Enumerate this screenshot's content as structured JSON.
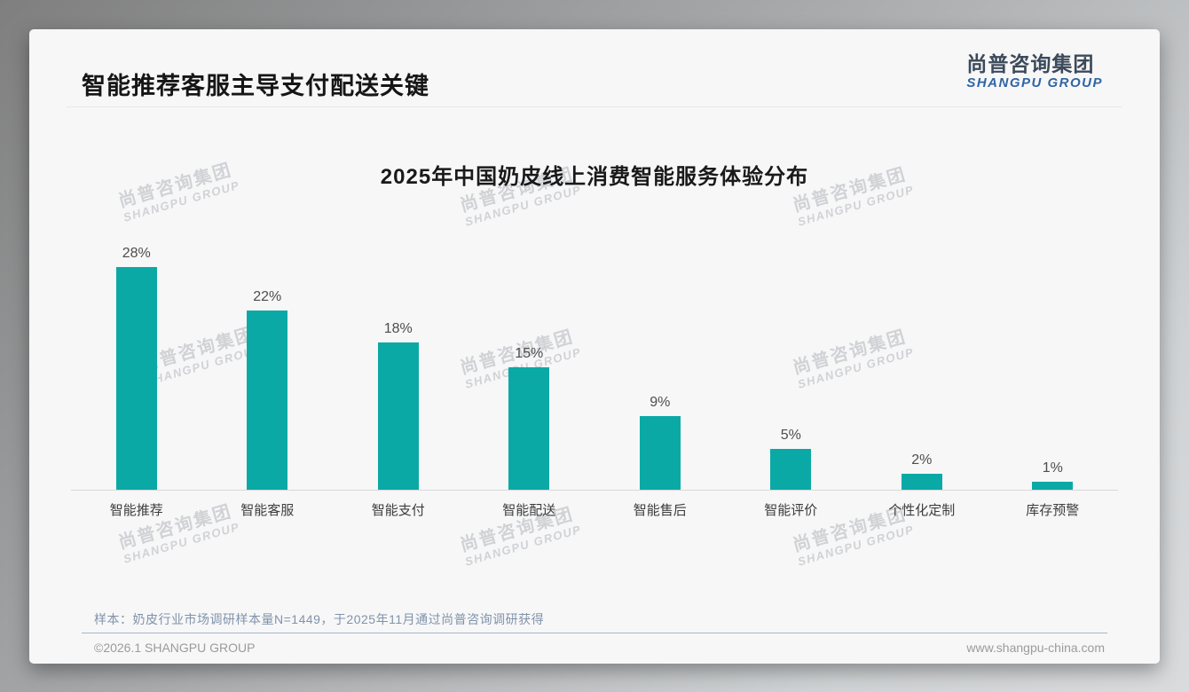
{
  "page": {
    "header": {
      "title": "智能推荐客服主导支付配送关键"
    },
    "logo": {
      "cn": "尚普咨询集团",
      "en": "SHANGPU GROUP"
    },
    "watermark": {
      "cn": "尚普咨询集团",
      "en": "SHANGPU GROUP"
    },
    "footer": {
      "note": "样本：奶皮行业市场调研样本量N=1449，于2025年11月通过尚普咨询调研获得",
      "copyright": "©2026.1 SHANGPU GROUP",
      "website": "www.shangpu-china.com"
    }
  },
  "chart_data": {
    "type": "bar",
    "title": "2025年中国奶皮线上消费智能服务体验分布",
    "categories": [
      "智能推荐",
      "智能客服",
      "智能支付",
      "智能配送",
      "智能售后",
      "智能评价",
      "个性化定制",
      "库存预警"
    ],
    "values": [
      28,
      22,
      18,
      15,
      9,
      5,
      2,
      1
    ],
    "value_labels": [
      "28%",
      "22%",
      "18%",
      "15%",
      "9%",
      "5%",
      "2%",
      "1%"
    ],
    "unit": "%",
    "ylim": [
      0,
      30
    ],
    "bar_color": "#0BA9A5",
    "grid": false,
    "legend": false,
    "xlabel": "",
    "ylabel": ""
  }
}
